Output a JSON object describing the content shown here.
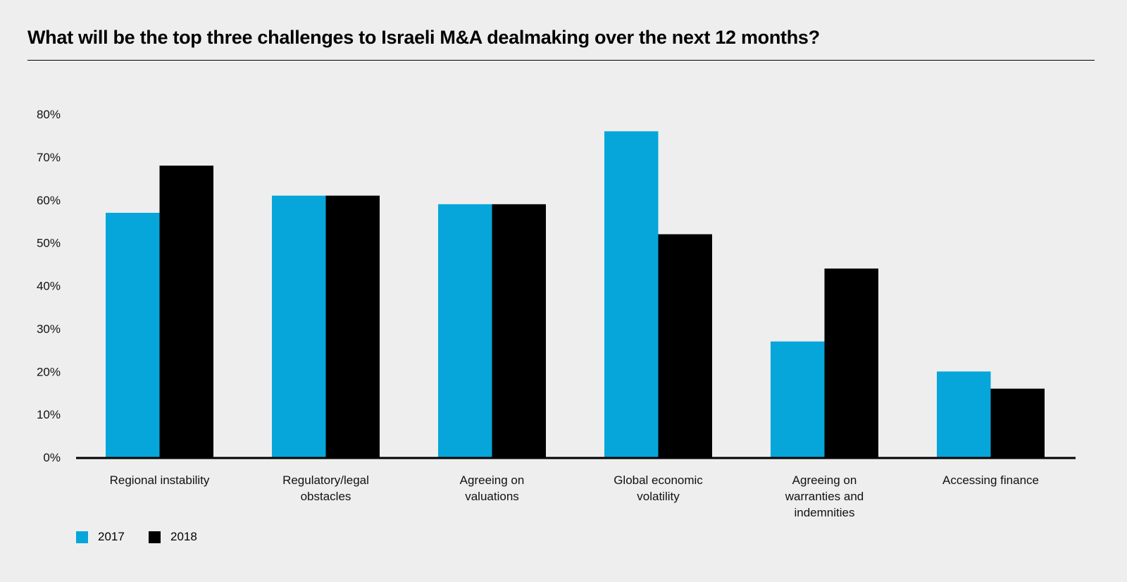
{
  "title": "What will be the top three challenges to Israeli M&A dealmaking over the next 12 months?",
  "chart_data": {
    "type": "bar",
    "title": "What will be the top three challenges to Israeli M&A dealmaking over the next 12 months?",
    "xlabel": "",
    "ylabel": "",
    "ylim": [
      0,
      80
    ],
    "yticks": [
      "0%",
      "10%",
      "20%",
      "30%",
      "40%",
      "50%",
      "60%",
      "70%",
      "80%"
    ],
    "grid": false,
    "legend_position": "bottom-left",
    "categories": [
      [
        "Regional instability"
      ],
      [
        "Regulatory/legal",
        "obstacles"
      ],
      [
        "Agreeing on",
        "valuations"
      ],
      [
        "Global economic",
        "volatility"
      ],
      [
        "Agreeing on",
        "warranties and",
        "indemnities"
      ],
      [
        "Accessing finance"
      ]
    ],
    "series": [
      {
        "name": "2017",
        "color": "#06a6da",
        "values": [
          57,
          61,
          59,
          76,
          27,
          20
        ]
      },
      {
        "name": "2018",
        "color": "#000000",
        "values": [
          68,
          61,
          59,
          52,
          44,
          16
        ]
      }
    ]
  }
}
